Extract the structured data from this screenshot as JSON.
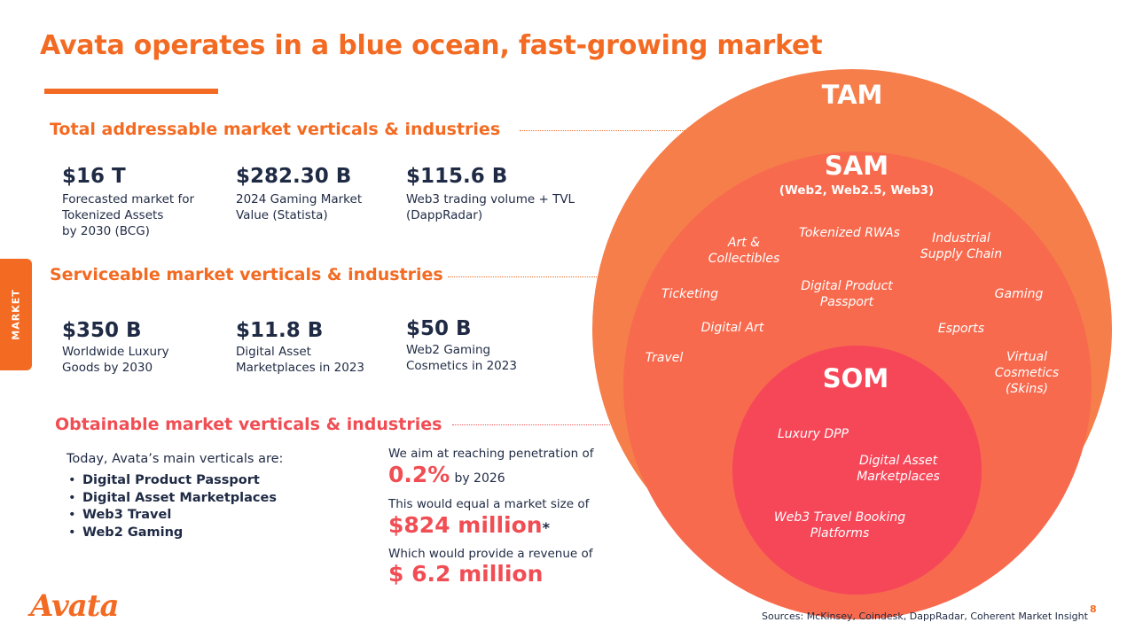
{
  "title": "Avata operates in a blue ocean, fast-growing market",
  "side_tab": "MARKET",
  "tam_section": {
    "heading": "Total addressable market verticals & industries",
    "stats": [
      {
        "value": "$16 T",
        "desc": "Forecasted market for\nTokenized Assets\nby 2030 (BCG)"
      },
      {
        "value": "$282.30 B",
        "desc": "2024 Gaming Market\nValue (Statista)"
      },
      {
        "value": "$115.6 B",
        "desc": "Web3 trading volume + TVL\n(DappRadar)"
      }
    ]
  },
  "sam_section": {
    "heading": "Serviceable market verticals & industries",
    "stats": [
      {
        "value": "$350 B",
        "desc": "Worldwide Luxury\nGoods by 2030"
      },
      {
        "value": "$11.8 B",
        "desc": "Digital Asset\nMarketplaces in 2023"
      },
      {
        "value": "$50 B",
        "desc": "Web2 Gaming\nCosmetics in 2023"
      }
    ]
  },
  "som_section": {
    "heading": "Obtainable market verticals & industries",
    "intro": "Today, Avata’s main verticals are:",
    "verticals": [
      "Digital Product Passport",
      "Digital Asset Marketplaces",
      "Web3 Travel",
      "Web2 Gaming"
    ],
    "penetration_text": "We aim at reaching penetration of",
    "penetration_value": "0.2%",
    "penetration_suffix": "by 2026",
    "market_size_text": "This would equal a market size of",
    "market_size_value": "$824 million",
    "market_size_mark": "*",
    "revenue_text": "Which would provide a  revenue of",
    "revenue_value": "$ 6.2 million"
  },
  "diagram": {
    "tam_label": "TAM",
    "sam_label": "SAM",
    "sam_sub": "(Web2, Web2.5, Web3)",
    "som_label": "SOM",
    "sam_items": [
      "Art &\nCollectibles",
      "Tokenized RWAs",
      "Industrial\nSupply Chain",
      "Ticketing",
      "Digital Product\nPassport",
      "Gaming",
      "Digital Art",
      "Esports",
      "Travel",
      "Virtual\nCosmetics\n(Skins)"
    ],
    "som_items": [
      "Luxury DPP",
      "Digital Asset\nMarketplaces",
      "Web3 Travel Booking\nPlatforms"
    ],
    "colors": {
      "tam": "#f57e4a",
      "sam": "#f76a4e",
      "som": "#f64759",
      "accent": "#f36b23"
    }
  },
  "footer": {
    "logo": "Avata",
    "sources": "Sources: McKinsey, Coindesk, DappRadar, Coherent Market Insight",
    "page_number": "8"
  }
}
